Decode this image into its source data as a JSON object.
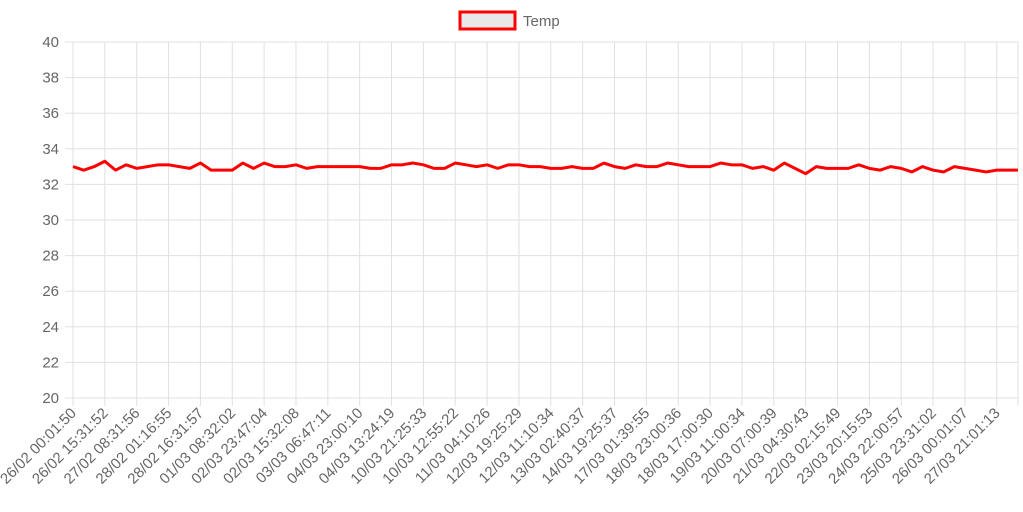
{
  "chart_data": {
    "type": "line",
    "categories": [
      "26/02 00:01:50",
      null,
      null,
      "26/02 15:31:52",
      null,
      null,
      "27/02 08:31:56",
      null,
      null,
      "28/02 01:16:55",
      null,
      null,
      "28/02 16:31:57",
      null,
      null,
      "01/03 08:32:02",
      null,
      null,
      "02/03 23:47:04",
      null,
      null,
      "02/03 15:32:08",
      null,
      null,
      "03/03 06:47:11",
      null,
      null,
      "04/03 23:00:10",
      null,
      null,
      "04/03 13:24:19",
      null,
      null,
      "10/03 21:25:33",
      null,
      null,
      "10/03 12:55:22",
      null,
      null,
      "11/03 04:10:26",
      null,
      null,
      "12/03 19:25:29",
      null,
      null,
      "12/03 11:10:34",
      null,
      null,
      "13/03 02:40:37",
      null,
      null,
      "14/03 19:25:37",
      null,
      null,
      "17/03 01:39:55",
      null,
      null,
      "18/03 23:00:36",
      null,
      null,
      "18/03 17:00:30",
      null,
      null,
      "19/03 11:00:34",
      null,
      null,
      "20/03 07:00:39",
      null,
      null,
      "21/03 04:30:43",
      null,
      null,
      "22/03 02:15:49",
      null,
      null,
      "23/03 20:15:53",
      null,
      null,
      "24/03 22:00:57",
      null,
      null,
      "25/03 23:31:02",
      null,
      null,
      "26/03 00:01:07",
      null,
      null,
      "27/03 21:01:13",
      null,
      null
    ],
    "series": [
      {
        "name": "Temp",
        "color": "#ff0000",
        "values": [
          33.0,
          32.8,
          33.0,
          33.3,
          32.8,
          33.1,
          32.9,
          33.0,
          33.1,
          33.1,
          33.0,
          32.9,
          33.2,
          32.8,
          32.8,
          32.8,
          33.2,
          32.9,
          33.2,
          33.0,
          33.0,
          33.1,
          32.9,
          33.0,
          33.0,
          33.0,
          33.0,
          33.0,
          32.9,
          32.9,
          33.1,
          33.1,
          33.2,
          33.1,
          32.9,
          32.9,
          33.2,
          33.1,
          33.0,
          33.1,
          32.9,
          33.1,
          33.1,
          33.0,
          33.0,
          32.9,
          32.9,
          33.0,
          32.9,
          32.9,
          33.2,
          33.0,
          32.9,
          33.1,
          33.0,
          33.0,
          33.2,
          33.1,
          33.0,
          33.0,
          33.0,
          33.2,
          33.1,
          33.1,
          32.9,
          33.0,
          32.8,
          33.2,
          32.9,
          32.6,
          33.0,
          32.9,
          32.9,
          32.9,
          33.1,
          32.9,
          32.8,
          33.0,
          32.9,
          32.7,
          33.0,
          32.8,
          32.7,
          33.0,
          32.9,
          32.8,
          32.7,
          32.8,
          32.8,
          32.8
        ]
      }
    ],
    "ylim": [
      20,
      40
    ],
    "yticks": [
      20,
      22,
      24,
      26,
      28,
      30,
      32,
      34,
      36,
      38,
      40
    ],
    "grid": true,
    "legend": "top"
  }
}
